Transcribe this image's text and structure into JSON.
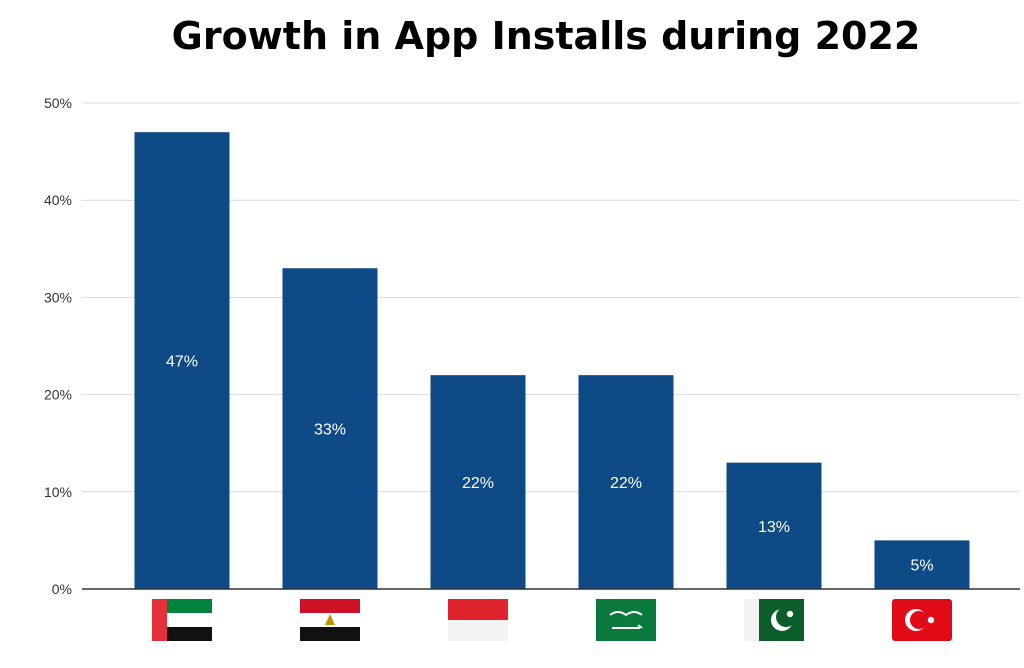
{
  "chart_data": {
    "type": "bar",
    "title": "Growth in App Installs during 2022",
    "xlabel": "",
    "ylabel": "",
    "ylim": [
      0,
      50
    ],
    "yticks": [
      "0%",
      "10%",
      "20%",
      "30%",
      "40%",
      "50%"
    ],
    "grid": true,
    "categories": [
      {
        "flag": "uae-flag-icon"
      },
      {
        "flag": "egypt-flag-icon"
      },
      {
        "flag": "indonesia-flag-icon"
      },
      {
        "flag": "saudi-arabia-flag-icon"
      },
      {
        "flag": "pakistan-flag-icon"
      },
      {
        "flag": "turkey-flag-icon"
      }
    ],
    "values": [
      47,
      33,
      22,
      22,
      13,
      5
    ],
    "data_labels": [
      "47%",
      "33%",
      "22%",
      "22%",
      "13%",
      "5%"
    ],
    "colors": {
      "bar": "#0d4a86",
      "grid": "#d9d9d9",
      "axis": "#333333",
      "label": "#ffffff"
    }
  }
}
